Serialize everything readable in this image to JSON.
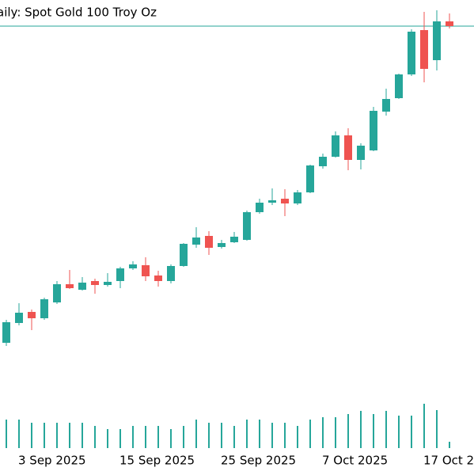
{
  "chart_data": {
    "type": "candlestick",
    "title": "aily:  Spot Gold 100 Troy Oz",
    "categories": [
      null,
      "3 Sep 2025",
      null,
      null,
      null,
      null,
      null,
      null,
      null,
      "15 Sep 2025",
      null,
      null,
      null,
      null,
      null,
      null,
      null,
      "25 Sep 2025",
      null,
      null,
      null,
      null,
      null,
      null,
      null,
      "7 Oct 2025",
      null,
      null,
      null,
      null,
      null,
      null,
      null,
      "17 Oct 2",
      null,
      null
    ],
    "open": [
      3534,
      3584,
      3612,
      3596,
      3636,
      3682,
      3668,
      3690,
      3680,
      3690,
      3722,
      3730,
      3704,
      3690,
      3728,
      3782,
      3804,
      3776,
      3788,
      3794,
      3864,
      3888,
      3898,
      3886,
      3914,
      3980,
      4004,
      4058,
      3996,
      4020,
      4118,
      4152,
      4212,
      4324,
      4248,
      4346
    ],
    "high": [
      3592,
      3634,
      3618,
      3648,
      3690,
      3718,
      3700,
      3696,
      3710,
      3726,
      3740,
      3750,
      3716,
      3732,
      3786,
      3826,
      3816,
      3794,
      3814,
      3868,
      3898,
      3924,
      3922,
      3920,
      3984,
      4012,
      4068,
      4076,
      4038,
      4130,
      4176,
      4214,
      4326,
      4370,
      4374,
      4366
    ],
    "low": [
      3526,
      3578,
      3566,
      3592,
      3632,
      3670,
      3666,
      3658,
      3676,
      3672,
      3718,
      3690,
      3676,
      3684,
      3726,
      3774,
      3756,
      3772,
      3786,
      3792,
      3860,
      3882,
      3854,
      3882,
      3912,
      3974,
      4002,
      3970,
      3972,
      4018,
      4108,
      4150,
      4208,
      4192,
      4222,
      4328
    ],
    "close": [
      3586,
      3610,
      3596,
      3644,
      3682,
      3672,
      3686,
      3680,
      3688,
      3722,
      3732,
      3702,
      3690,
      3728,
      3784,
      3800,
      3774,
      3786,
      3802,
      3864,
      3888,
      3894,
      3886,
      3914,
      3982,
      4004,
      4058,
      3996,
      4032,
      4120,
      4150,
      4212,
      4320,
      4226,
      4346,
      4334
    ],
    "volume": [
      36,
      36,
      32,
      32,
      32,
      32,
      32,
      28,
      24,
      24,
      28,
      28,
      28,
      24,
      28,
      36,
      32,
      32,
      28,
      36,
      36,
      32,
      32,
      28,
      36,
      39,
      39,
      43,
      47,
      43,
      47,
      41,
      41,
      56,
      48,
      8
    ],
    "ylim": [
      3460,
      4400
    ],
    "volume_lim": [
      0,
      100
    ],
    "price_line": 4334,
    "up_color": "#26a69a",
    "down_color": "#ef5350",
    "volume_color": "#26a69a",
    "price_line_color": "#26a69a"
  }
}
